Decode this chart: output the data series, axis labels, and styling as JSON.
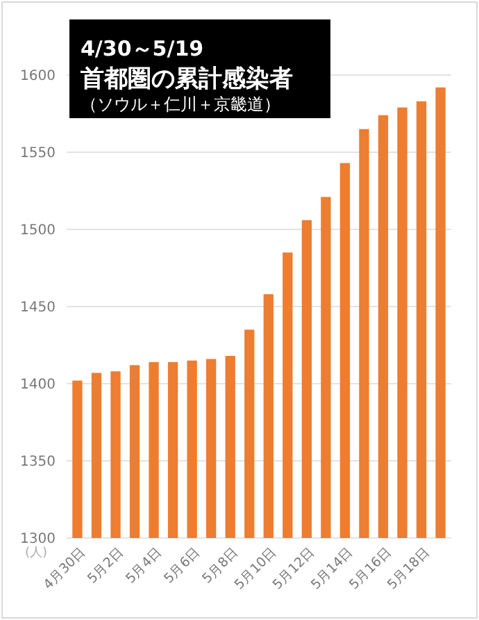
{
  "chart_data": {
    "type": "bar",
    "subtitle": "4/30～5/19",
    "title": "首都圏の累計感染者",
    "annotations": [
      "（ソウル＋仁川＋京畿道）"
    ],
    "ylabel": "(人)",
    "categories": [
      "4月30日",
      null,
      "5月2日",
      null,
      "5月4日",
      null,
      "5月6日",
      null,
      "5月8日",
      null,
      "5月10日",
      null,
      "5月12日",
      null,
      "5月14日",
      null,
      "5月16日",
      null,
      "5月18日",
      null
    ],
    "values": [
      1402,
      1407,
      1408,
      1412,
      1414,
      1414,
      1415,
      1416,
      1418,
      1435,
      1458,
      1485,
      1506,
      1521,
      1543,
      1565,
      1574,
      1579,
      1583,
      1592
    ],
    "color": "#ed7d31",
    "ylim": [
      1300,
      1600
    ],
    "yticks": [
      1300,
      1350,
      1400,
      1450,
      1500,
      1550,
      1600
    ],
    "grid": "y"
  }
}
